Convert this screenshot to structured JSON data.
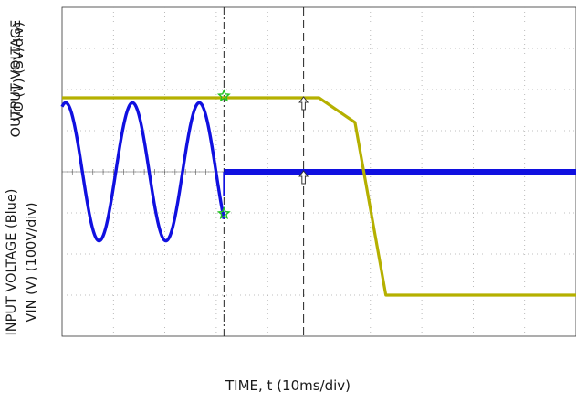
{
  "chart_data": {
    "type": "line",
    "x_axis": {
      "label": "TIME, t (10ms/div)",
      "unit": "ms",
      "range": [
        0,
        100
      ],
      "divisions": 10
    },
    "y_axes": [
      {
        "label_line1": "OUTPUT VOLTAGE",
        "label_line2": "VO (V) (5V/div)",
        "sub_label": "O",
        "range_divisions": [
          -4,
          4
        ]
      },
      {
        "label_line1": "INPUT VOLTAGE (Blue)",
        "label_line2": "VIN (V) (100V/div)",
        "sub_label": "IN",
        "range_divisions": [
          -4,
          4
        ]
      }
    ],
    "grid": true,
    "series": [
      {
        "name": "VO",
        "color": "#b5b000",
        "units_per_div": 5,
        "points_div": [
          [
            0,
            1.8
          ],
          [
            29,
            1.8
          ],
          [
            50,
            1.8
          ],
          [
            57,
            1.2
          ],
          [
            63,
            -3.0
          ],
          [
            69,
            -3.0
          ],
          [
            100,
            -3.0
          ]
        ],
        "note_points_ms": [
          0,
          29,
          50,
          57,
          63,
          69,
          100
        ]
      },
      {
        "name": "VIN",
        "color": "#1010e0",
        "units_per_div": 100,
        "sine_amplitude_div": 1.68,
        "sine_period_ms": 13,
        "sine_phase_ms": 0,
        "sine_end_ms": 31.5,
        "dc_after_ms": 31.5,
        "dc_level_div": 0
      }
    ],
    "markers": [
      {
        "shape": "star",
        "x_ms": 31.5,
        "series": "VO"
      },
      {
        "shape": "star",
        "x_ms": 31.5,
        "series": "VIN"
      },
      {
        "shape": "arrow",
        "x_ms": 47,
        "series": "VO"
      },
      {
        "shape": "arrow",
        "x_ms": 47,
        "series": "VIN"
      }
    ],
    "cursors_ms": [
      31.5,
      47
    ]
  }
}
